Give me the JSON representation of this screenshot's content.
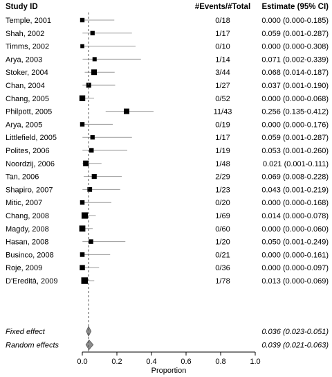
{
  "chart_data": {
    "type": "forest",
    "headers": {
      "study": "Study ID",
      "events": "#Events/#Total",
      "estimate": "Estimate (95% CI)"
    },
    "xlabel": "Proportion",
    "xlim": [
      0,
      1
    ],
    "xticks": [
      "0.0",
      "0.2",
      "0.4",
      "0.6",
      "0.8",
      "1.0"
    ],
    "reference_line": 0.036,
    "studies": [
      {
        "study": "Temple, 2001",
        "events": "0/18",
        "ci_text": "0.000 (0.000-0.185)",
        "est": 0.0,
        "lo": 0.0,
        "hi": 0.185,
        "total": 18
      },
      {
        "study": "Shah, 2002",
        "events": "1/17",
        "ci_text": "0.059 (0.001-0.287)",
        "est": 0.059,
        "lo": 0.001,
        "hi": 0.287,
        "total": 17
      },
      {
        "study": "Timms, 2002",
        "events": "0/10",
        "ci_text": "0.000 (0.000-0.308)",
        "est": 0.0,
        "lo": 0.0,
        "hi": 0.308,
        "total": 10
      },
      {
        "study": "Arya, 2003",
        "events": "1/14",
        "ci_text": "0.071 (0.002-0.339)",
        "est": 0.071,
        "lo": 0.002,
        "hi": 0.339,
        "total": 14
      },
      {
        "study": "Stoker, 2004",
        "events": "3/44",
        "ci_text": "0.068 (0.014-0.187)",
        "est": 0.068,
        "lo": 0.014,
        "hi": 0.187,
        "total": 44
      },
      {
        "study": "Chan, 2004",
        "events": "1/27",
        "ci_text": "0.037 (0.001-0.190)",
        "est": 0.037,
        "lo": 0.001,
        "hi": 0.19,
        "total": 27
      },
      {
        "study": "Chang, 2005",
        "events": "0/52",
        "ci_text": "0.000 (0.000-0.068)",
        "est": 0.0,
        "lo": 0.0,
        "hi": 0.068,
        "total": 52
      },
      {
        "study": "Philpott, 2005",
        "events": "11/43",
        "ci_text": "0.256 (0.135-0.412)",
        "est": 0.256,
        "lo": 0.135,
        "hi": 0.412,
        "total": 43
      },
      {
        "study": "Arya, 2005",
        "events": "0/19",
        "ci_text": "0.000 (0.000-0.176)",
        "est": 0.0,
        "lo": 0.0,
        "hi": 0.176,
        "total": 19
      },
      {
        "study": "Littlefield, 2005",
        "events": "1/17",
        "ci_text": "0.059 (0.001-0.287)",
        "est": 0.059,
        "lo": 0.001,
        "hi": 0.287,
        "total": 17
      },
      {
        "study": "Polites, 2006",
        "events": "1/19",
        "ci_text": "0.053 (0.001-0.260)",
        "est": 0.053,
        "lo": 0.001,
        "hi": 0.26,
        "total": 19
      },
      {
        "study": "Noordzij, 2006",
        "events": "1/48",
        "ci_text": "0.021 (0.001-0.111)",
        "est": 0.021,
        "lo": 0.001,
        "hi": 0.111,
        "total": 48
      },
      {
        "study": "Tan, 2006",
        "events": "2/29",
        "ci_text": "0.069 (0.008-0.228)",
        "est": 0.069,
        "lo": 0.008,
        "hi": 0.228,
        "total": 29
      },
      {
        "study": "Shapiro, 2007",
        "events": "1/23",
        "ci_text": "0.043 (0.001-0.219)",
        "est": 0.043,
        "lo": 0.001,
        "hi": 0.219,
        "total": 23
      },
      {
        "study": "Mitic, 2007",
        "events": "0/20",
        "ci_text": "0.000 (0.000-0.168)",
        "est": 0.0,
        "lo": 0.0,
        "hi": 0.168,
        "total": 20
      },
      {
        "study": "Chang, 2008",
        "events": "1/69",
        "ci_text": "0.014 (0.000-0.078)",
        "est": 0.014,
        "lo": 0.0,
        "hi": 0.078,
        "total": 69
      },
      {
        "study": "Magdy, 2008",
        "events": "0/60",
        "ci_text": "0.000 (0.000-0.060)",
        "est": 0.0,
        "lo": 0.0,
        "hi": 0.06,
        "total": 60
      },
      {
        "study": "Hasan, 2008",
        "events": "1/20",
        "ci_text": "0.050 (0.001-0.249)",
        "est": 0.05,
        "lo": 0.001,
        "hi": 0.249,
        "total": 20
      },
      {
        "study": "Businco, 2008",
        "events": "0/21",
        "ci_text": "0.000 (0.000-0.161)",
        "est": 0.0,
        "lo": 0.0,
        "hi": 0.161,
        "total": 21
      },
      {
        "study": "Roje, 2009",
        "events": "0/36",
        "ci_text": "0.000 (0.000-0.097)",
        "est": 0.0,
        "lo": 0.0,
        "hi": 0.097,
        "total": 36
      },
      {
        "study": "D'Eredità, 2009",
        "events": "1/78",
        "ci_text": "0.013 (0.000-0.069)",
        "est": 0.013,
        "lo": 0.0,
        "hi": 0.069,
        "total": 78
      }
    ],
    "summaries": [
      {
        "label": "Fixed effect",
        "ci_text": "0.036 (0.023-0.051)",
        "est": 0.036,
        "lo": 0.023,
        "hi": 0.051
      },
      {
        "label": "Random effects",
        "ci_text": "0.039 (0.021-0.063)",
        "est": 0.039,
        "lo": 0.021,
        "hi": 0.063
      }
    ],
    "colors": {
      "square": "#000000",
      "ci_line": "#9a9a9a",
      "diamond_fill": "#8c8c8c",
      "reference_line": "#555555"
    }
  }
}
